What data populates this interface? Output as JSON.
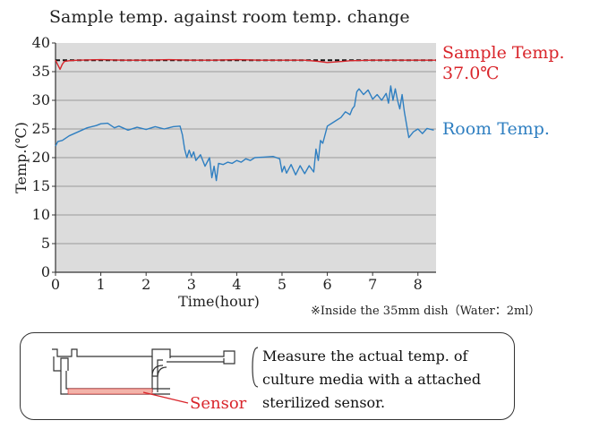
{
  "title": "Sample temp. against room temp. change",
  "chart_data": {
    "type": "line",
    "xlabel": "Time(hour)",
    "ylabel": "Temp.(℃)",
    "xlim": [
      0,
      8.4
    ],
    "ylim": [
      0,
      40
    ],
    "x_ticks": [
      0,
      1,
      2,
      3,
      4,
      5,
      6,
      7,
      8
    ],
    "y_ticks": [
      0,
      5,
      10,
      15,
      20,
      25,
      30,
      35,
      40
    ],
    "grid": true,
    "reference_line": {
      "value": 37.0,
      "style": "dashed",
      "color": "#111111"
    },
    "series": [
      {
        "name": "Sample Temp.",
        "color": "#d9252b",
        "x": [
          0,
          0.05,
          0.1,
          0.15,
          0.2,
          0.3,
          0.5,
          1,
          1.5,
          2,
          2.5,
          3,
          3.5,
          4,
          4.5,
          5,
          5.5,
          5.8,
          6,
          6.2,
          6.5,
          7,
          7.5,
          8,
          8.4
        ],
        "y": [
          37.0,
          36.2,
          35.4,
          36.3,
          36.8,
          36.9,
          37.0,
          37.1,
          37.0,
          37.0,
          37.1,
          37.0,
          37.0,
          37.1,
          37.0,
          37.0,
          37.0,
          36.8,
          36.6,
          36.7,
          36.9,
          37.0,
          37.0,
          37.0,
          37.0
        ]
      },
      {
        "name": "Room Temp.",
        "color": "#2f7fc1",
        "x": [
          0,
          0.05,
          0.15,
          0.3,
          0.5,
          0.7,
          0.9,
          1.0,
          1.15,
          1.3,
          1.4,
          1.6,
          1.8,
          2.0,
          2.2,
          2.4,
          2.6,
          2.75,
          2.8,
          2.85,
          2.9,
          2.95,
          3.0,
          3.05,
          3.1,
          3.2,
          3.3,
          3.4,
          3.45,
          3.5,
          3.55,
          3.6,
          3.7,
          3.8,
          3.9,
          4.0,
          4.1,
          4.2,
          4.3,
          4.4,
          4.6,
          4.8,
          4.95,
          5.0,
          5.05,
          5.1,
          5.2,
          5.3,
          5.4,
          5.5,
          5.6,
          5.7,
          5.75,
          5.8,
          5.85,
          5.9,
          6.0,
          6.1,
          6.2,
          6.3,
          6.4,
          6.5,
          6.55,
          6.6,
          6.65,
          6.7,
          6.8,
          6.9,
          7.0,
          7.1,
          7.2,
          7.3,
          7.35,
          7.4,
          7.45,
          7.5,
          7.55,
          7.6,
          7.65,
          7.7,
          7.8,
          7.9,
          8.0,
          8.1,
          8.2,
          8.35
        ],
        "y": [
          22.0,
          22.8,
          23.0,
          23.8,
          24.5,
          25.2,
          25.6,
          25.9,
          26.0,
          25.2,
          25.5,
          24.8,
          25.3,
          24.9,
          25.4,
          25.0,
          25.4,
          25.5,
          24.0,
          21.5,
          20.0,
          21.3,
          20.1,
          21.0,
          19.5,
          20.5,
          18.5,
          20.0,
          16.5,
          18.5,
          16.0,
          19.0,
          18.8,
          19.2,
          19.0,
          19.5,
          19.2,
          19.8,
          19.5,
          20.0,
          20.1,
          20.2,
          19.8,
          17.5,
          18.5,
          17.3,
          18.8,
          17.0,
          18.6,
          17.2,
          18.6,
          17.5,
          21.5,
          19.5,
          23.0,
          22.5,
          25.5,
          26.0,
          26.5,
          27.0,
          28.0,
          27.5,
          28.5,
          29.0,
          31.5,
          32.0,
          31.0,
          31.8,
          30.2,
          31.0,
          30.0,
          31.2,
          29.5,
          32.5,
          30.0,
          32.0,
          30.0,
          28.5,
          31.0,
          28.0,
          23.5,
          24.5,
          25.0,
          24.2,
          25.1,
          24.8
        ]
      }
    ]
  },
  "labels": {
    "sample_line1": "Sample Temp.",
    "sample_line2": "37.0℃",
    "room": "Room Temp."
  },
  "footnote": "※Inside the 35mm dish（Water：2ml）",
  "description_lines": [
    "Measure the actual temp. of",
    "culture media with a attached",
    "sterilized sensor."
  ],
  "sensor_label": "Sensor"
}
